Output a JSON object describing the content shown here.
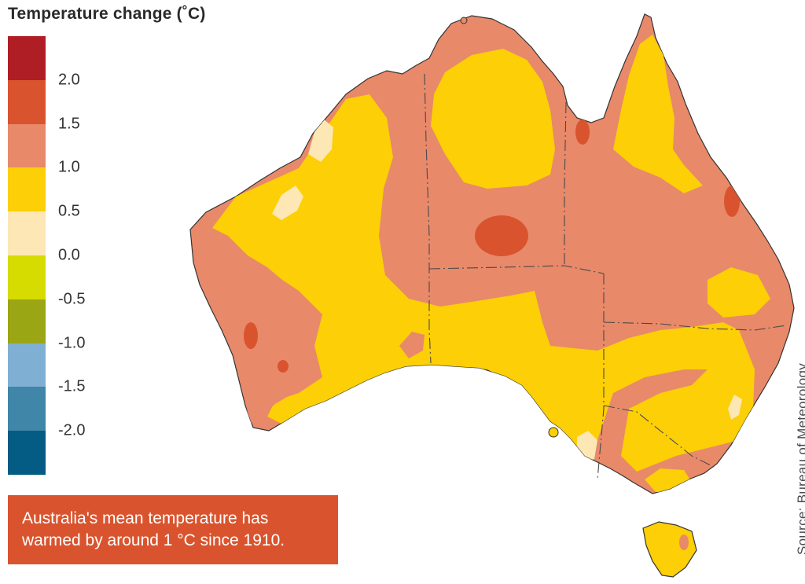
{
  "legend": {
    "title": "Temperature change (˚C)",
    "colors": [
      "#b01e25",
      "#d9542e",
      "#e8896a",
      "#fccf06",
      "#fde7b4",
      "#d6dc00",
      "#9aa614",
      "#7fb0d3",
      "#3f86a8",
      "#045c84"
    ],
    "ticks": [
      "2.0",
      "1.5",
      "1.0",
      "0.5",
      "0.0",
      "-0.5",
      "-1.0",
      "-1.5",
      "-2.0"
    ]
  },
  "callout": {
    "line1": "Australia's mean temperature has",
    "line2": "warmed by around 1 °C since 1910."
  },
  "source": "Source: Bureau of Meteorology",
  "map": {
    "region": "Australia",
    "base_color": "#e8896a",
    "zone_colors": {
      "warm_orange": "#e8896a",
      "yellow": "#fccf06",
      "pale": "#fde7b4",
      "hot": "#d9542e",
      "border": "#555555"
    }
  }
}
